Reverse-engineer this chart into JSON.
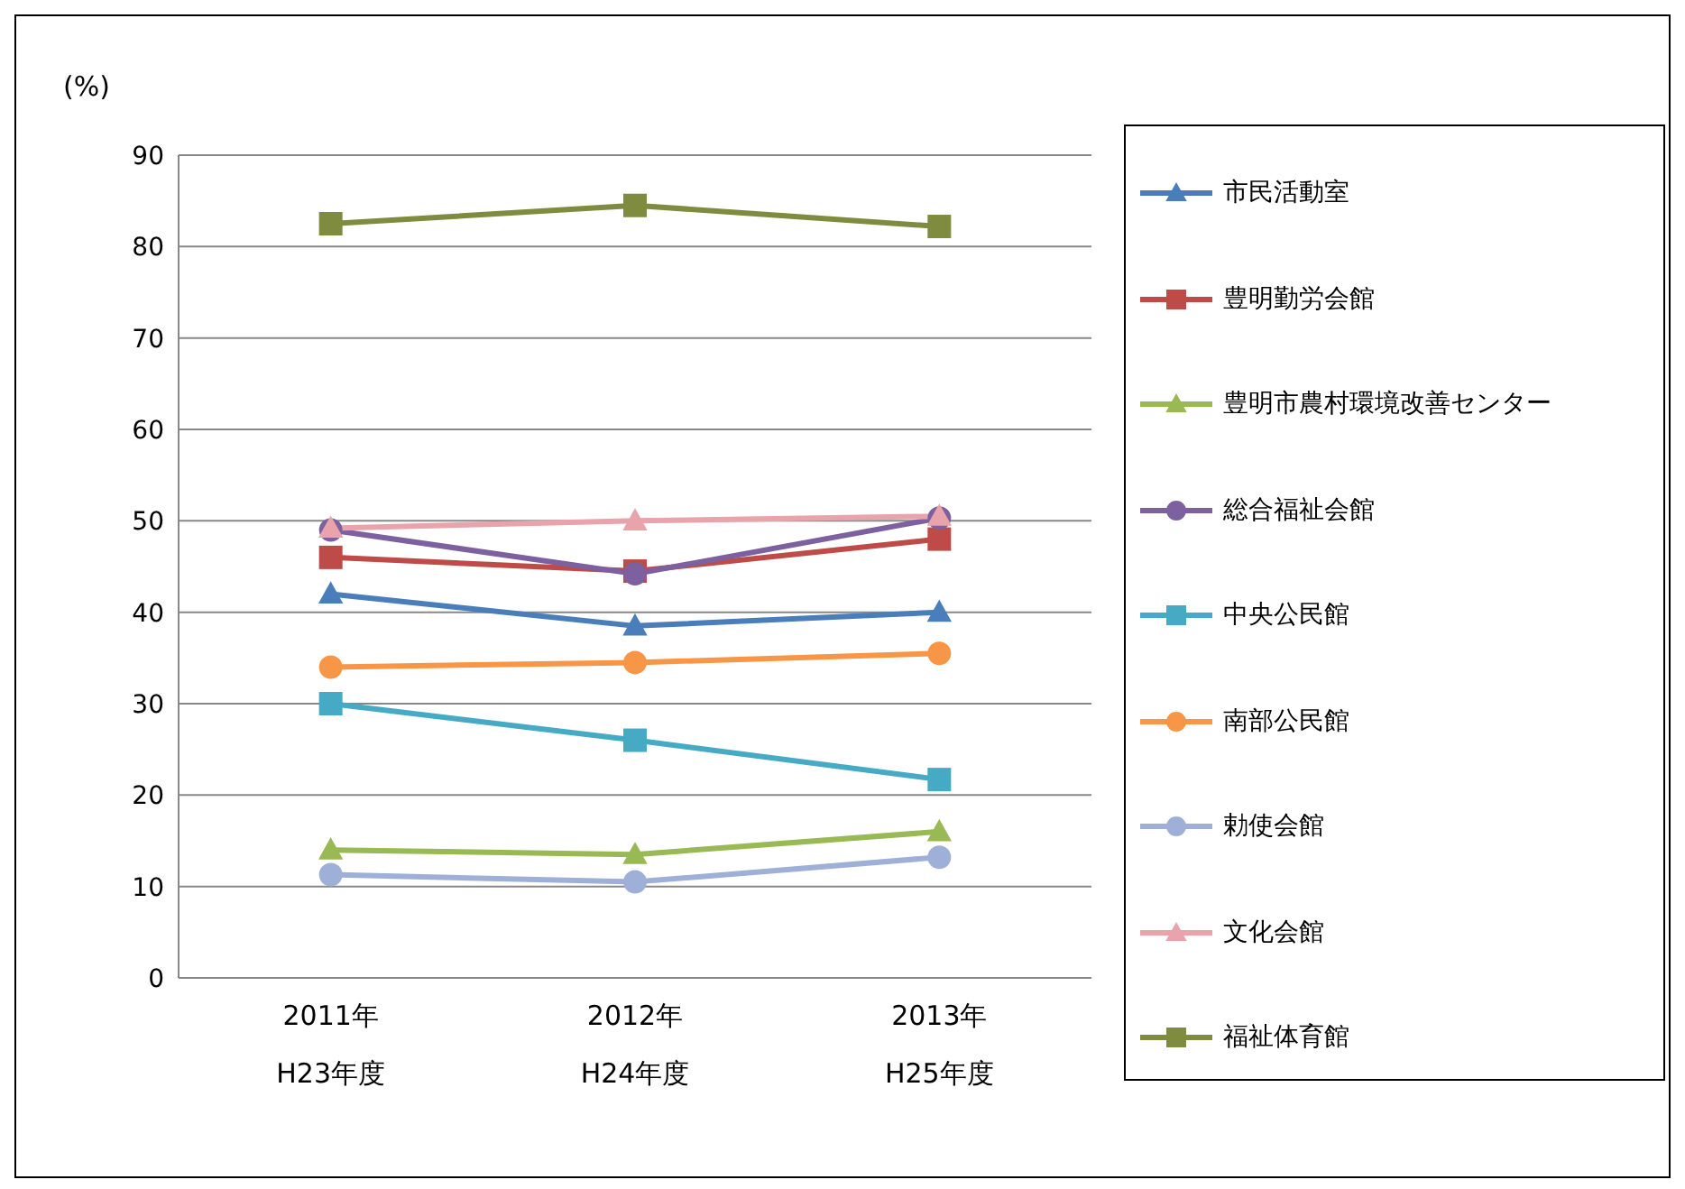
{
  "chart_data": {
    "type": "line",
    "ylabel": "(%)",
    "categories": [
      "2011年\nH23年度",
      "2012年\nH24年度",
      "2013年\nH25年度"
    ],
    "series": [
      {
        "name": "市民活動室",
        "color": "#4a7ebb",
        "marker": "triangle",
        "values": [
          42,
          38.5,
          40
        ]
      },
      {
        "name": "豊明勤労会館",
        "color": "#be4b48",
        "marker": "square",
        "values": [
          46,
          44.5,
          48
        ]
      },
      {
        "name": "豊明市農村環境改善センター",
        "color": "#98b954",
        "marker": "triangle",
        "values": [
          14,
          13.5,
          16
        ]
      },
      {
        "name": "総合福祉会館",
        "color": "#7d60a0",
        "marker": "circle",
        "values": [
          49,
          44.2,
          50.3
        ]
      },
      {
        "name": "中央公民館",
        "color": "#46aac5",
        "marker": "square",
        "values": [
          30,
          26,
          21.7
        ]
      },
      {
        "name": "南部公民館",
        "color": "#f79646",
        "marker": "circle",
        "values": [
          34,
          34.5,
          35.5
        ]
      },
      {
        "name": "勅使会館",
        "color": "#9fb0d8",
        "marker": "circle",
        "values": [
          11.3,
          10.5,
          13.2
        ]
      },
      {
        "name": "文化会館",
        "color": "#e9a3ab",
        "marker": "triangle",
        "values": [
          49.2,
          50,
          50.5
        ]
      },
      {
        "name": "福祉体育館",
        "color": "#7f8c3f",
        "marker": "square",
        "values": [
          82.5,
          84.5,
          82.2
        ]
      }
    ],
    "ylim": [
      0,
      90
    ],
    "yticks": [
      0,
      10,
      20,
      30,
      40,
      50,
      60,
      70,
      80,
      90
    ],
    "grid": "y",
    "legend": "right",
    "line_style": "solid"
  }
}
